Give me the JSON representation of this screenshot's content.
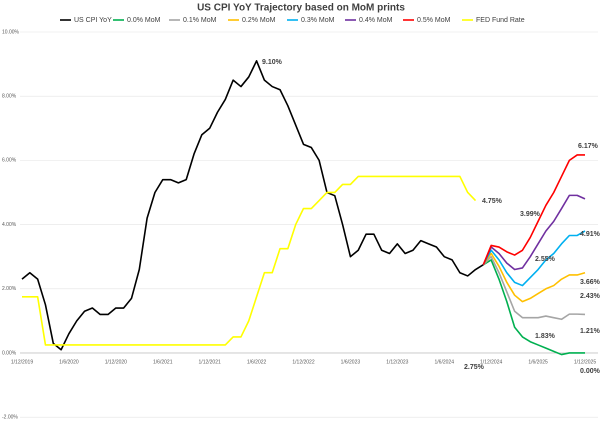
{
  "chart_data": {
    "type": "line",
    "title": "US CPI YoY Trajectory based on MoM prints",
    "categories": [
      "1/12/2019",
      null,
      null,
      null,
      null,
      null,
      "1/6/2020",
      null,
      null,
      null,
      null,
      null,
      "1/12/2020",
      null,
      null,
      null,
      null,
      null,
      "1/6/2021",
      null,
      null,
      null,
      null,
      null,
      "1/12/2021",
      null,
      null,
      null,
      null,
      null,
      "1/6/2022",
      null,
      null,
      null,
      null,
      null,
      "1/12/2022",
      null,
      null,
      null,
      null,
      null,
      "1/6/2023",
      null,
      null,
      null,
      null,
      null,
      "1/12/2023",
      null,
      null,
      null,
      null,
      null,
      "1/6/2024",
      null,
      null,
      null,
      null,
      null,
      "1/12/2024",
      null,
      null,
      null,
      null,
      null,
      "1/6/2025",
      null,
      null,
      null,
      null,
      null,
      "1/12/2025"
    ],
    "series": [
      {
        "name": "US CPI YoY",
        "color": "#000000",
        "values": [
          2.3,
          2.5,
          2.3,
          1.5,
          0.3,
          0.1,
          0.6,
          1.0,
          1.3,
          1.4,
          1.2,
          1.2,
          1.4,
          1.4,
          1.7,
          2.6,
          4.2,
          5.0,
          5.4,
          5.4,
          5.3,
          5.4,
          6.2,
          6.8,
          7.0,
          7.5,
          7.9,
          8.5,
          8.3,
          8.6,
          9.1,
          8.5,
          8.3,
          8.2,
          7.7,
          7.1,
          6.5,
          6.4,
          6.0,
          5.0,
          4.9,
          4.0,
          3.0,
          3.2,
          3.7,
          3.7,
          3.2,
          3.1,
          3.4,
          3.1,
          3.2,
          3.5,
          3.4,
          3.3,
          3.0,
          2.9,
          2.5,
          2.4,
          2.6,
          2.75,
          null,
          null,
          null,
          null,
          null,
          null,
          null,
          null,
          null,
          null,
          null,
          null,
          null
        ]
      },
      {
        "name": "0.0% MoM",
        "color": "#00b050",
        "values": [
          null,
          null,
          null,
          null,
          null,
          null,
          null,
          null,
          null,
          null,
          null,
          null,
          null,
          null,
          null,
          null,
          null,
          null,
          null,
          null,
          null,
          null,
          null,
          null,
          null,
          null,
          null,
          null,
          null,
          null,
          null,
          null,
          null,
          null,
          null,
          null,
          null,
          null,
          null,
          null,
          null,
          null,
          null,
          null,
          null,
          null,
          null,
          null,
          null,
          null,
          null,
          null,
          null,
          null,
          null,
          null,
          null,
          null,
          null,
          2.75,
          2.9,
          2.3,
          1.6,
          0.8,
          0.5,
          0.35,
          0.25,
          0.15,
          0.05,
          -0.05,
          0.0,
          0.0,
          0.0
        ]
      },
      {
        "name": "0.1% MoM",
        "color": "#a5a5a5",
        "values": [
          null,
          null,
          null,
          null,
          null,
          null,
          null,
          null,
          null,
          null,
          null,
          null,
          null,
          null,
          null,
          null,
          null,
          null,
          null,
          null,
          null,
          null,
          null,
          null,
          null,
          null,
          null,
          null,
          null,
          null,
          null,
          null,
          null,
          null,
          null,
          null,
          null,
          null,
          null,
          null,
          null,
          null,
          null,
          null,
          null,
          null,
          null,
          null,
          null,
          null,
          null,
          null,
          null,
          null,
          null,
          null,
          null,
          null,
          null,
          2.75,
          3.0,
          2.5,
          1.9,
          1.3,
          1.1,
          1.1,
          1.1,
          1.15,
          1.1,
          1.05,
          1.21,
          1.21,
          1.2
        ]
      },
      {
        "name": "0.2% MoM",
        "color": "#ffc000",
        "values": [
          null,
          null,
          null,
          null,
          null,
          null,
          null,
          null,
          null,
          null,
          null,
          null,
          null,
          null,
          null,
          null,
          null,
          null,
          null,
          null,
          null,
          null,
          null,
          null,
          null,
          null,
          null,
          null,
          null,
          null,
          null,
          null,
          null,
          null,
          null,
          null,
          null,
          null,
          null,
          null,
          null,
          null,
          null,
          null,
          null,
          null,
          null,
          null,
          null,
          null,
          null,
          null,
          null,
          null,
          null,
          null,
          null,
          null,
          null,
          2.75,
          3.1,
          2.7,
          2.2,
          1.8,
          1.6,
          1.7,
          1.85,
          2.0,
          2.1,
          2.3,
          2.43,
          2.43,
          2.5
        ]
      },
      {
        "name": "0.3% MoM",
        "color": "#00b0f0",
        "values": [
          null,
          null,
          null,
          null,
          null,
          null,
          null,
          null,
          null,
          null,
          null,
          null,
          null,
          null,
          null,
          null,
          null,
          null,
          null,
          null,
          null,
          null,
          null,
          null,
          null,
          null,
          null,
          null,
          null,
          null,
          null,
          null,
          null,
          null,
          null,
          null,
          null,
          null,
          null,
          null,
          null,
          null,
          null,
          null,
          null,
          null,
          null,
          null,
          null,
          null,
          null,
          null,
          null,
          null,
          null,
          null,
          null,
          null,
          null,
          2.75,
          3.2,
          2.9,
          2.5,
          2.2,
          2.1,
          2.35,
          2.6,
          2.9,
          3.1,
          3.4,
          3.66,
          3.66,
          3.8
        ]
      },
      {
        "name": "0.4% MoM",
        "color": "#7030a0",
        "values": [
          null,
          null,
          null,
          null,
          null,
          null,
          null,
          null,
          null,
          null,
          null,
          null,
          null,
          null,
          null,
          null,
          null,
          null,
          null,
          null,
          null,
          null,
          null,
          null,
          null,
          null,
          null,
          null,
          null,
          null,
          null,
          null,
          null,
          null,
          null,
          null,
          null,
          null,
          null,
          null,
          null,
          null,
          null,
          null,
          null,
          null,
          null,
          null,
          null,
          null,
          null,
          null,
          null,
          null,
          null,
          null,
          null,
          null,
          null,
          2.75,
          3.3,
          3.1,
          2.8,
          2.6,
          2.65,
          3.0,
          3.4,
          3.8,
          4.1,
          4.5,
          4.91,
          4.91,
          4.8
        ]
      },
      {
        "name": "0.5% MoM",
        "color": "#ff0000",
        "values": [
          null,
          null,
          null,
          null,
          null,
          null,
          null,
          null,
          null,
          null,
          null,
          null,
          null,
          null,
          null,
          null,
          null,
          null,
          null,
          null,
          null,
          null,
          null,
          null,
          null,
          null,
          null,
          null,
          null,
          null,
          null,
          null,
          null,
          null,
          null,
          null,
          null,
          null,
          null,
          null,
          null,
          null,
          null,
          null,
          null,
          null,
          null,
          null,
          null,
          null,
          null,
          null,
          null,
          null,
          null,
          null,
          null,
          null,
          null,
          2.75,
          3.35,
          3.3,
          3.15,
          3.05,
          3.2,
          3.6,
          4.1,
          4.6,
          5.0,
          5.5,
          6.0,
          6.17,
          6.17
        ]
      },
      {
        "name": "FED Fund Rate",
        "color": "#ffff00",
        "values": [
          1.75,
          1.75,
          1.75,
          0.25,
          0.25,
          0.25,
          0.25,
          0.25,
          0.25,
          0.25,
          0.25,
          0.25,
          0.25,
          0.25,
          0.25,
          0.25,
          0.25,
          0.25,
          0.25,
          0.25,
          0.25,
          0.25,
          0.25,
          0.25,
          0.25,
          0.25,
          0.25,
          0.5,
          0.5,
          1.0,
          1.75,
          2.5,
          2.5,
          3.25,
          3.25,
          4.0,
          4.5,
          4.5,
          4.75,
          5.0,
          5.0,
          5.25,
          5.25,
          5.5,
          5.5,
          5.5,
          5.5,
          5.5,
          5.5,
          5.5,
          5.5,
          5.5,
          5.5,
          5.5,
          5.5,
          5.5,
          5.5,
          5.0,
          4.75,
          null,
          null,
          null,
          null,
          null,
          null,
          null,
          null,
          null,
          null,
          null,
          null,
          null,
          null
        ]
      }
    ],
    "ylim": [
      -2.4,
      10
    ],
    "yticks": [
      {
        "value": -2,
        "label": "-2.00%"
      },
      {
        "value": 0,
        "label": "0.00%"
      },
      {
        "value": 2,
        "label": "2.00%"
      },
      {
        "value": 4,
        "label": "4.00%"
      },
      {
        "value": 6,
        "label": "6.00%"
      },
      {
        "value": 8,
        "label": "8.00%"
      },
      {
        "value": 10,
        "label": "10.00%"
      }
    ],
    "grid": true,
    "legend": "top",
    "annotations": [
      "9.10%",
      "2.75%",
      "4.75%",
      "6.17%",
      "3.99%",
      "4.91%",
      "3.66%",
      "2.55%",
      "2.43%",
      "1.83%",
      "1.21%",
      "0.00%"
    ]
  }
}
